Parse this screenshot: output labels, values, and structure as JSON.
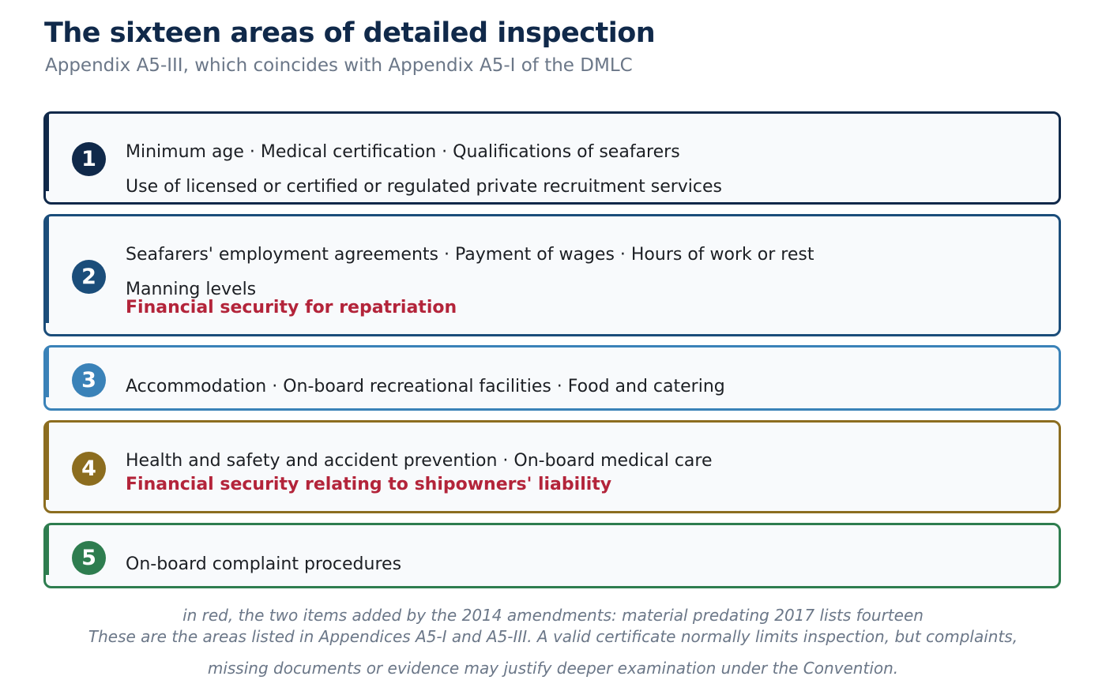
{
  "header": {
    "title": "The sixteen areas of detailed inspection",
    "subtitle": "Appendix A5-III, which coincides with Appendix A5-I of the DMLC"
  },
  "groups": [
    {
      "number": "1",
      "color": "#10294a",
      "lines": [
        "Minimum age · Medical certification · Qualifications of seafarers",
        "Use of licensed or certified or regulated private recruitment services"
      ],
      "added": ""
    },
    {
      "number": "2",
      "color": "#1b4d7a",
      "lines": [
        "Seafarers' employment agreements · Payment of wages · Hours of work or rest",
        "Manning levels"
      ],
      "added": "Financial security for repatriation"
    },
    {
      "number": "3",
      "color": "#3a82b8",
      "lines": [
        "Accommodation · On-board recreational facilities · Food and catering"
      ],
      "added": ""
    },
    {
      "number": "4",
      "color": "#8c6d1f",
      "lines": [
        "Health and safety and accident prevention · On-board medical care"
      ],
      "added": "Financial security relating to shipowners' liability"
    },
    {
      "number": "5",
      "color": "#2e7d4f",
      "lines": [
        "On-board complaint procedures"
      ],
      "added": ""
    }
  ],
  "notes": {
    "legend": "in red, the two items added by the 2014 amendments: material predating 2017 lists fourteen",
    "caption_line1": "These are the areas listed in Appendices A5-I and A5-III. A valid certificate normally limits inspection, but complaints,",
    "caption_line2": "missing documents or evidence may justify deeper examination under the Convention."
  },
  "colors": {
    "title": "#10294a",
    "muted": "#6b7788",
    "added_item": "#b3243a",
    "card_background": "#f8fafc"
  }
}
